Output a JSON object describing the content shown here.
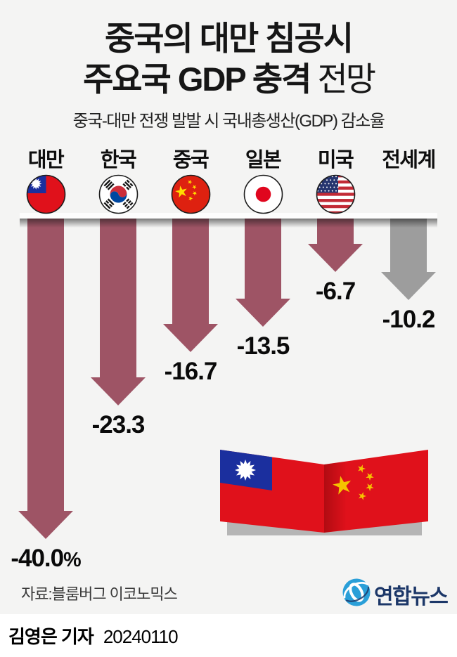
{
  "title": {
    "line1": "중국의 대만 침공시",
    "line2_strong": "주요국 GDP 충격",
    "line2_light": " 전망"
  },
  "subtitle": "중국-대만 전쟁 발발 시 국내총생산(GDP) 감소율",
  "chart_data": {
    "type": "bar",
    "variant": "downward-arrow-bars",
    "title": "중국의 대만 침공시 주요국 GDP 충격 전망",
    "subtitle": "중국-대만 전쟁 발발 시 국내총생산(GDP) 감소율",
    "unit": "%",
    "categories": [
      "대만",
      "한국",
      "중국",
      "일본",
      "미국",
      "전세계"
    ],
    "values": [
      -40.0,
      -23.3,
      -16.7,
      -13.5,
      -6.7,
      -10.2
    ],
    "value_labels": [
      "-40.0%",
      "-23.3",
      "-16.7",
      "-13.5",
      "-6.7",
      "-10.2"
    ],
    "flag_icons": [
      "taiwan-flag-icon",
      "south-korea-flag-icon",
      "china-flag-icon",
      "japan-flag-icon",
      "united-states-flag-icon",
      null
    ],
    "arrow_color": "#9e5465",
    "world_arrow_color": "#9d9d9d",
    "baseline_color": "#fdfdfd",
    "ylim": [
      -40,
      0
    ],
    "grid": false,
    "legend": false
  },
  "flags_graphic": {
    "left_flag": "taiwan-flag",
    "right_flag": "china-flag"
  },
  "source": "자료:블룸버그 이코노믹스",
  "logo": {
    "name": "연합뉴스"
  },
  "byline": {
    "reporter": "김영은 기자",
    "date": "20240110"
  },
  "colors": {
    "background": "#f4f4f3",
    "footer": "#ffffff",
    "title": "#161616",
    "logo_blue": "#2a9fd8",
    "logo_navy": "#1c3768"
  }
}
